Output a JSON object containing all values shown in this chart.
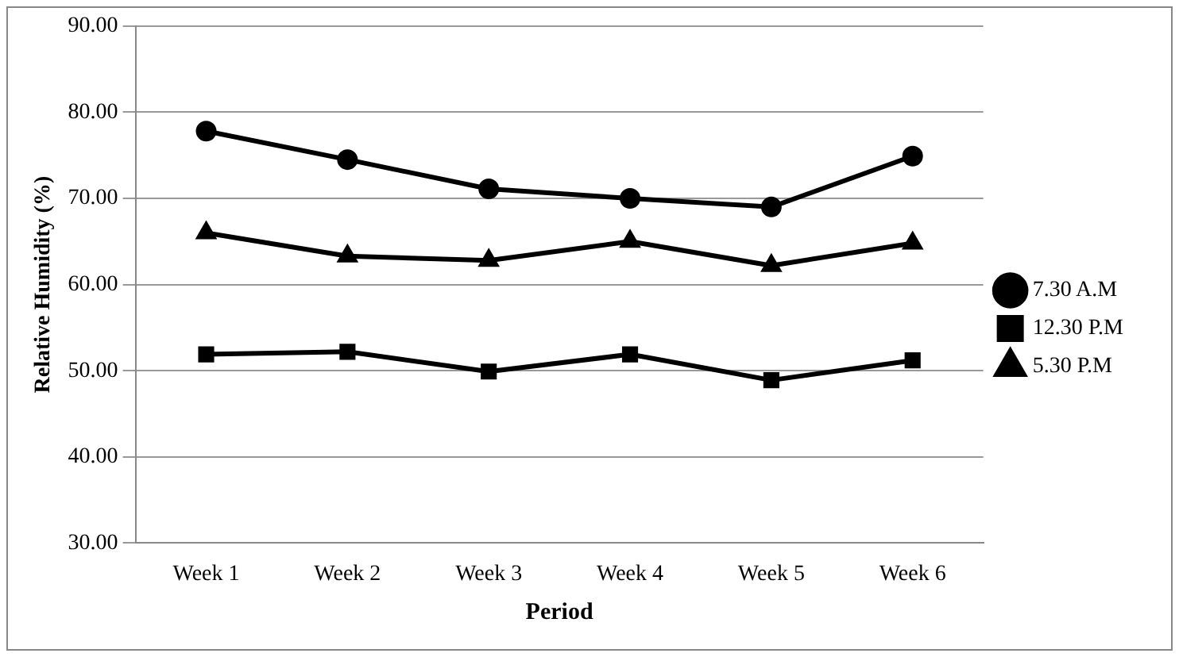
{
  "chart_data": {
    "type": "line",
    "xlabel": "Period",
    "ylabel": "Relative Humidity (%)",
    "categories": [
      "Week 1",
      "Week 2",
      "Week 3",
      "Week 4",
      "Week 5",
      "Week 6"
    ],
    "series": [
      {
        "name": "7.30 A.M",
        "color": "#000000",
        "marker": "circle",
        "values": [
          77.8,
          74.5,
          71.1,
          70.0,
          69.0,
          74.9
        ]
      },
      {
        "name": "12.30 P.M",
        "color": "#000000",
        "marker": "square",
        "values": [
          51.9,
          52.2,
          49.9,
          51.9,
          48.9,
          51.2
        ]
      },
      {
        "name": "5.30 P.M",
        "color": "#000000",
        "marker": "triangle",
        "values": [
          66.0,
          63.3,
          62.8,
          65.0,
          62.2,
          64.8
        ]
      }
    ],
    "ylim": [
      30,
      90
    ],
    "yticks": [
      {
        "value": 30,
        "label": "30.00"
      },
      {
        "value": 40,
        "label": "40.00"
      },
      {
        "value": 50,
        "label": "50.00"
      },
      {
        "value": 60,
        "label": "60.00"
      },
      {
        "value": 70,
        "label": "70.00"
      },
      {
        "value": 80,
        "label": "80.00"
      },
      {
        "value": 90,
        "label": "90.00"
      }
    ],
    "grid": "y",
    "legend": "right",
    "line_style": "solid"
  }
}
